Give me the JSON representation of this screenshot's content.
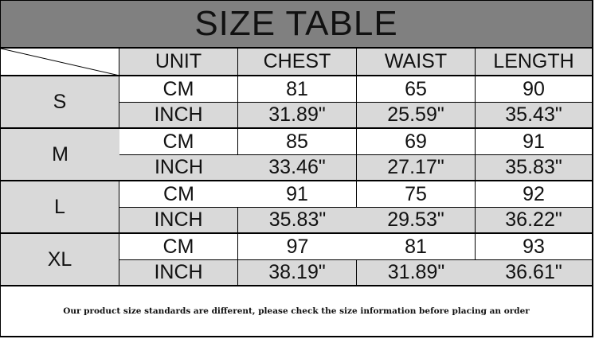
{
  "title": "SIZE TABLE",
  "headers": [
    "UNIT",
    "CHEST",
    "WAIST",
    "LENGTH"
  ],
  "rows": [
    {
      "size": "S",
      "cm": {
        "unit": "CM",
        "chest": "81",
        "waist": "65",
        "length": "90"
      },
      "inch": {
        "unit": "INCH",
        "chest": "31.89\"",
        "waist": "25.59\"",
        "length": "35.43\""
      }
    },
    {
      "size": "M",
      "cm": {
        "unit": "CM",
        "chest": "85",
        "waist": "69",
        "length": "91"
      },
      "inch": {
        "unit": "INCH",
        "chest": "33.46\"",
        "waist": "27.17\"",
        "length": "35.83\""
      }
    },
    {
      "size": "L",
      "cm": {
        "unit": "CM",
        "chest": "91",
        "waist": "75",
        "length": "92"
      },
      "inch": {
        "unit": "INCH",
        "chest": "35.83\"",
        "waist": "29.53\"",
        "length": "36.22\""
      }
    },
    {
      "size": "XL",
      "cm": {
        "unit": "CM",
        "chest": "97",
        "waist": "81",
        "length": "93"
      },
      "inch": {
        "unit": "INCH",
        "chest": "38.19\"",
        "waist": "31.89\"",
        "length": "36.61\""
      }
    }
  ],
  "note": "Our product size standards are different, please check the size information before placing an order",
  "colors": {
    "title_bg": "#808080",
    "shade": "#d9d9d9",
    "border": "#000000"
  }
}
